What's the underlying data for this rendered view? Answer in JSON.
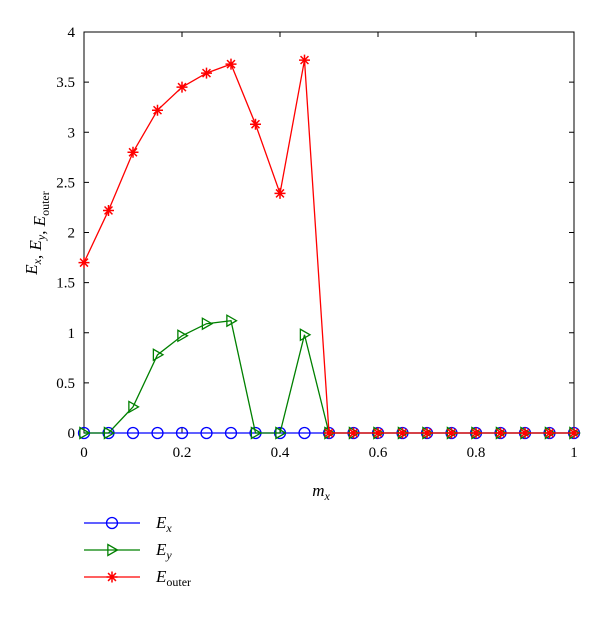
{
  "chart_data": {
    "type": "line",
    "xlabel": "m",
    "xlabel_sub": "x",
    "ylabel": [
      {
        "base": "E",
        "sub": "x"
      },
      {
        "sep": ", "
      },
      {
        "base": "E",
        "sub": "y"
      },
      {
        "sep": ", "
      },
      {
        "base": "E",
        "sub": "outer"
      }
    ],
    "xlim": [
      0,
      1
    ],
    "ylim": [
      0,
      4
    ],
    "x_ticks": [
      0,
      0.2,
      0.4,
      0.6,
      0.8,
      1
    ],
    "x_tick_labels": [
      "0",
      "0.2",
      "0.4",
      "0.6",
      "0.8",
      "1"
    ],
    "y_ticks": [
      0,
      0.5,
      1,
      1.5,
      2,
      2.5,
      3,
      3.5,
      4
    ],
    "y_tick_labels": [
      "0",
      "0.5",
      "1",
      "1.5",
      "2",
      "2.5",
      "3",
      "3.5",
      "4"
    ],
    "grid": false,
    "legend_position": "below-left",
    "x": [
      0,
      0.05,
      0.1,
      0.15,
      0.2,
      0.25,
      0.3,
      0.35,
      0.4,
      0.45,
      0.5,
      0.55,
      0.6,
      0.65,
      0.7,
      0.75,
      0.8,
      0.85,
      0.9,
      0.95,
      1
    ],
    "series": [
      {
        "name": "E",
        "name_sub": "x",
        "color": "#0000ff",
        "marker": "circle",
        "values": [
          0,
          0,
          0,
          0,
          0,
          0,
          0,
          0,
          0,
          0,
          0,
          0,
          0,
          0,
          0,
          0,
          0,
          0,
          0,
          0,
          0
        ]
      },
      {
        "name": "E",
        "name_sub": "y",
        "color": "#008000",
        "marker": "triangle-right",
        "values": [
          0,
          0,
          0.26,
          0.78,
          0.97,
          1.09,
          1.12,
          0,
          0,
          0.98,
          0,
          0,
          0,
          0,
          0,
          0,
          0,
          0,
          0,
          0,
          0
        ]
      },
      {
        "name": "E",
        "name_sub": "outer",
        "color": "#ff0000",
        "marker": "asterisk",
        "values": [
          1.7,
          2.22,
          2.8,
          3.22,
          3.45,
          3.59,
          3.68,
          3.08,
          2.39,
          3.72,
          0,
          0,
          0,
          0,
          0,
          0,
          0,
          0,
          0,
          0,
          0
        ]
      }
    ]
  }
}
